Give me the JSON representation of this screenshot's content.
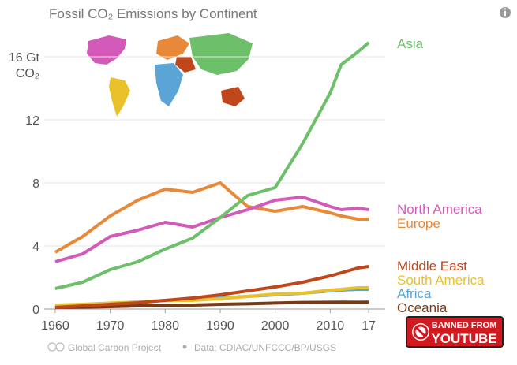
{
  "chart_data": {
    "type": "line",
    "title": "Fossil CO₂ Emissions by Continent",
    "y_unit": "CO₂",
    "x": [
      1960,
      1965,
      1970,
      1975,
      1980,
      1985,
      1990,
      1995,
      2000,
      2005,
      2010,
      2012,
      2015,
      2017
    ],
    "xlim": [
      1958,
      2020
    ],
    "xticks": [
      1960,
      1970,
      1980,
      1990,
      2000,
      2010,
      {
        "value": 2017,
        "label": "17"
      }
    ],
    "ylim": [
      0,
      18
    ],
    "yticks": [
      0,
      4,
      8,
      12,
      {
        "value": 16,
        "label": "16 Gt"
      }
    ],
    "grid": true,
    "series": [
      {
        "name": "Asia",
        "color": "#6dbf6a",
        "values": [
          1.3,
          1.7,
          2.5,
          3.0,
          3.8,
          4.5,
          5.8,
          7.2,
          7.7,
          10.5,
          13.7,
          15.5,
          16.3,
          16.9
        ]
      },
      {
        "name": "North America",
        "color": "#d35ab8",
        "values": [
          3.0,
          3.5,
          4.6,
          5.0,
          5.5,
          5.2,
          5.8,
          6.3,
          6.9,
          7.1,
          6.5,
          6.3,
          6.4,
          6.3
        ]
      },
      {
        "name": "Europe",
        "color": "#e8893a",
        "values": [
          3.6,
          4.6,
          5.9,
          6.9,
          7.6,
          7.4,
          8.0,
          6.5,
          6.2,
          6.5,
          6.1,
          5.9,
          5.7,
          5.7
        ]
      },
      {
        "name": "Middle East",
        "color": "#c0461c",
        "values": [
          0.1,
          0.2,
          0.3,
          0.4,
          0.55,
          0.7,
          0.9,
          1.15,
          1.4,
          1.7,
          2.1,
          2.3,
          2.6,
          2.7
        ]
      },
      {
        "name": "South America",
        "color": "#e8c12b",
        "values": [
          0.25,
          0.3,
          0.38,
          0.45,
          0.55,
          0.55,
          0.65,
          0.8,
          0.95,
          1.0,
          1.2,
          1.25,
          1.35,
          1.35
        ]
      },
      {
        "name": "Africa",
        "color": "#5aa4d6",
        "values": [
          0.2,
          0.25,
          0.35,
          0.45,
          0.55,
          0.65,
          0.7,
          0.8,
          0.9,
          1.0,
          1.15,
          1.2,
          1.25,
          1.25
        ]
      },
      {
        "name": "Oceania",
        "color": "#7a3a16",
        "values": [
          0.1,
          0.12,
          0.15,
          0.2,
          0.23,
          0.25,
          0.3,
          0.33,
          0.38,
          0.42,
          0.43,
          0.44,
          0.43,
          0.44
        ]
      }
    ]
  },
  "footer": {
    "source": "Global Carbon Project",
    "data": "Data: CDIAC/UNFCCC/BP/USGS"
  },
  "badge": {
    "line1": "BANNED FROM",
    "line2": "YOUTUBE"
  }
}
